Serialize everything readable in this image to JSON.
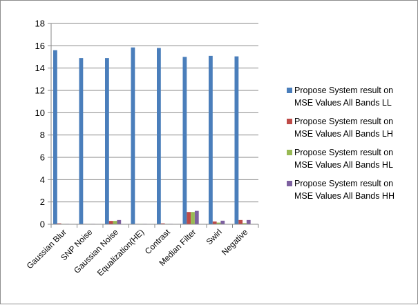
{
  "colors": {
    "ll": "#4a7ebb",
    "lh": "#be4b48",
    "hl": "#98b954",
    "hh": "#7d60a0",
    "grid": "#878787",
    "axis": "#878787"
  },
  "chart_data": {
    "type": "bar",
    "categories": [
      "Gaussian Blur",
      "SNP Noise",
      "Gaussian Noise",
      "Equalization(HE)",
      "Contrast",
      "Median Filter",
      "Swirl",
      "Negative"
    ],
    "series": [
      {
        "name": "Propose System result on MSE Values All Bands LL",
        "legend_lines": [
          "Propose System result on",
          "MSE Values All Bands LL"
        ],
        "color_key": "ll",
        "values": [
          15.6,
          14.9,
          14.9,
          15.85,
          15.8,
          15.0,
          15.1,
          15.05
        ]
      },
      {
        "name": "Propose System result on MSE Values All Bands LH",
        "legend_lines": [
          "Propose System result on",
          "MSE Values All Bands LH"
        ],
        "color_key": "lh",
        "values": [
          0.08,
          0.02,
          0.3,
          0.03,
          0.08,
          1.1,
          0.25,
          0.38
        ]
      },
      {
        "name": "Propose System result on MSE Values All Bands HL",
        "legend_lines": [
          "Propose System result on",
          "MSE Values All Bands HL"
        ],
        "color_key": "hl",
        "values": [
          0.01,
          0.01,
          0.3,
          0.01,
          0.01,
          1.1,
          0.15,
          0.1
        ]
      },
      {
        "name": "Propose System result on MSE Values All Bands HH",
        "legend_lines": [
          "Propose System result on",
          "MSE Values All Bands HH"
        ],
        "color_key": "hh",
        "values": [
          0.01,
          0.01,
          0.38,
          0.01,
          0.01,
          1.2,
          0.32,
          0.38
        ]
      }
    ],
    "y_ticks": [
      "0",
      "2",
      "4",
      "6",
      "8",
      "10",
      "12",
      "14",
      "16",
      "18"
    ],
    "ylim": [
      0,
      18
    ],
    "y_step": 2,
    "grid": true,
    "legend_position": "right",
    "title": "",
    "xlabel": "",
    "ylabel": ""
  }
}
